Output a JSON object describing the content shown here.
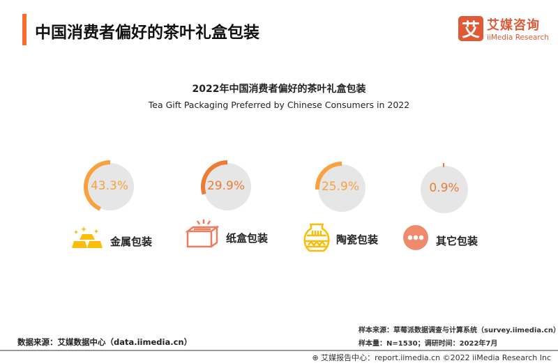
{
  "header": {
    "title": "中国消费者偏好的茶叶礼盒包装"
  },
  "logo": {
    "mark": "艾",
    "cn": "艾媒咨询",
    "en": "iiMedia Research"
  },
  "chart_data": {
    "type": "pie",
    "title": "2022年中国消费者偏好的茶叶礼盒包装",
    "subtitle": "Tea Gift Packaging Preferred by Chinese Consumers in 2022",
    "unit": "%",
    "items": [
      {
        "label": "金属包装",
        "value": 43.3,
        "display": "43.3%",
        "color": "#f9a03f",
        "icon": "gold-bars-icon"
      },
      {
        "label": "纸盒包装",
        "value": 29.9,
        "display": "29.9%",
        "color": "#ea7d33",
        "icon": "box-icon"
      },
      {
        "label": "陶瓷包装",
        "value": 25.9,
        "display": "25.9%",
        "color": "#f9a03f",
        "icon": "ceramic-jar-icon"
      },
      {
        "label": "其它包装",
        "value": 0.9,
        "display": "0.9%",
        "color": "#ea7d33",
        "icon": "more-dots-icon"
      }
    ],
    "track_color": "#e6e6e6"
  },
  "footer": {
    "source": "数据来源：艾媒数据中心（data.iimedia.cn）",
    "sample_source": "样本来源：草莓派数据调查与计算系统（survey.iimedia.cn）",
    "sample": "样本量：N=1530；调研时间：2022年7月",
    "copyright": "艾媒报告中心：report.iimedia.cn  ©2022  iiMedia Research  Inc"
  }
}
